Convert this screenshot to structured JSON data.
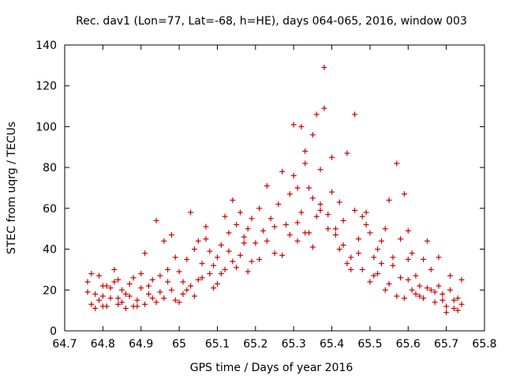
{
  "chart_data": {
    "type": "scatter",
    "title": "Rec. dav1 (Lon=77, Lat=-68, h=HE), days 064-065, 2016, window 003",
    "xlabel": "GPS time / Days of year 2016",
    "ylabel": "STEC from uqrg / TECUs",
    "xlim": [
      64.7,
      65.8
    ],
    "ylim": [
      0,
      140
    ],
    "x_ticks": [
      "64.7",
      "64.8",
      "64.9",
      "65",
      "65.1",
      "65.2",
      "65.3",
      "65.4",
      "65.5",
      "65.6",
      "65.7",
      "65.8"
    ],
    "y_ticks": [
      "0",
      "20",
      "40",
      "60",
      "80",
      "100",
      "120",
      "140"
    ],
    "grid": false,
    "marker": "+",
    "color": "#cc0000",
    "series": [
      {
        "points": [
          [
            64.76,
            24
          ],
          [
            64.77,
            13
          ],
          [
            64.78,
            18
          ],
          [
            64.79,
            15
          ],
          [
            64.8,
            22
          ],
          [
            64.81,
            12
          ],
          [
            64.82,
            16
          ],
          [
            64.83,
            24
          ],
          [
            64.84,
            13
          ],
          [
            64.85,
            20
          ],
          [
            64.86,
            11
          ],
          [
            64.87,
            17
          ],
          [
            64.88,
            26
          ],
          [
            64.89,
            15
          ],
          [
            64.9,
            21
          ],
          [
            64.91,
            13
          ],
          [
            64.92,
            18
          ],
          [
            64.93,
            25
          ],
          [
            64.94,
            14
          ],
          [
            64.95,
            19
          ],
          [
            64.96,
            16
          ],
          [
            64.97,
            24
          ],
          [
            64.98,
            20
          ],
          [
            64.99,
            15
          ],
          [
            64.76,
            19
          ],
          [
            64.78,
            11
          ],
          [
            64.8,
            17
          ],
          [
            64.82,
            21
          ],
          [
            64.84,
            25
          ],
          [
            64.86,
            18
          ],
          [
            64.88,
            12
          ],
          [
            64.9,
            28
          ],
          [
            64.92,
            22
          ],
          [
            64.94,
            54
          ],
          [
            64.96,
            44
          ],
          [
            64.98,
            47
          ],
          [
            64.77,
            28
          ],
          [
            64.79,
            27
          ],
          [
            64.81,
            22
          ],
          [
            64.83,
            30
          ],
          [
            64.85,
            14
          ],
          [
            64.87,
            23
          ],
          [
            64.89,
            12
          ],
          [
            64.91,
            38
          ],
          [
            64.93,
            16
          ],
          [
            64.95,
            27
          ],
          [
            64.97,
            30
          ],
          [
            64.99,
            36
          ],
          [
            64.8,
            12
          ],
          [
            64.84,
            16
          ],
          [
            65.0,
            29
          ],
          [
            65.01,
            18
          ],
          [
            65.02,
            35
          ],
          [
            65.03,
            22
          ],
          [
            65.04,
            40
          ],
          [
            65.05,
            25
          ],
          [
            65.06,
            33
          ],
          [
            65.07,
            45
          ],
          [
            65.08,
            28
          ],
          [
            65.09,
            21
          ],
          [
            65.1,
            36
          ],
          [
            65.11,
            42
          ],
          [
            65.12,
            30
          ],
          [
            65.13,
            48
          ],
          [
            65.14,
            34
          ],
          [
            65.15,
            52
          ],
          [
            65.16,
            37
          ],
          [
            65.17,
            46
          ],
          [
            65.18,
            29
          ],
          [
            65.19,
            55
          ],
          [
            65.0,
            14
          ],
          [
            65.02,
            20
          ],
          [
            65.04,
            17
          ],
          [
            65.06,
            26
          ],
          [
            65.08,
            39
          ],
          [
            65.1,
            23
          ],
          [
            65.12,
            56
          ],
          [
            65.14,
            64
          ],
          [
            65.16,
            58
          ],
          [
            65.18,
            50
          ],
          [
            65.03,
            58
          ],
          [
            65.05,
            44
          ],
          [
            65.07,
            51
          ],
          [
            65.09,
            32
          ],
          [
            65.11,
            28
          ],
          [
            65.13,
            39
          ],
          [
            65.15,
            31
          ],
          [
            65.17,
            43
          ],
          [
            65.19,
            34
          ],
          [
            65.01,
            24
          ],
          [
            65.2,
            43
          ],
          [
            65.21,
            60
          ],
          [
            65.22,
            49
          ],
          [
            65.23,
            71
          ],
          [
            65.24,
            55
          ],
          [
            65.25,
            38
          ],
          [
            65.26,
            62
          ],
          [
            65.27,
            78
          ],
          [
            65.28,
            52
          ],
          [
            65.29,
            67
          ],
          [
            65.3,
            76
          ],
          [
            65.31,
            44
          ],
          [
            65.32,
            58
          ],
          [
            65.33,
            82
          ],
          [
            65.34,
            48
          ],
          [
            65.35,
            96
          ],
          [
            65.36,
            56
          ],
          [
            65.37,
            62
          ],
          [
            65.38,
            129
          ],
          [
            65.39,
            57
          ],
          [
            65.3,
            101
          ],
          [
            65.32,
            100
          ],
          [
            65.34,
            70
          ],
          [
            65.36,
            106
          ],
          [
            65.38,
            109
          ],
          [
            65.4,
            85
          ],
          [
            65.31,
            70
          ],
          [
            65.33,
            88
          ],
          [
            65.35,
            65
          ],
          [
            65.37,
            79
          ],
          [
            65.21,
            35
          ],
          [
            65.23,
            44
          ],
          [
            65.25,
            51
          ],
          [
            65.27,
            37
          ],
          [
            65.29,
            47
          ],
          [
            65.31,
            53
          ],
          [
            65.33,
            48
          ],
          [
            65.35,
            41
          ],
          [
            65.37,
            59
          ],
          [
            65.39,
            50
          ],
          [
            65.4,
            68
          ],
          [
            65.41,
            47
          ],
          [
            65.42,
            40
          ],
          [
            65.43,
            54
          ],
          [
            65.44,
            87
          ],
          [
            65.45,
            36
          ],
          [
            65.46,
            59
          ],
          [
            65.47,
            45
          ],
          [
            65.48,
            30
          ],
          [
            65.49,
            52
          ],
          [
            65.5,
            48
          ],
          [
            65.51,
            36
          ],
          [
            65.52,
            28
          ],
          [
            65.53,
            44
          ],
          [
            65.54,
            20
          ],
          [
            65.55,
            64
          ],
          [
            65.56,
            36
          ],
          [
            65.57,
            82
          ],
          [
            65.58,
            26
          ],
          [
            65.59,
            67
          ],
          [
            65.42,
            63
          ],
          [
            65.44,
            33
          ],
          [
            65.46,
            106
          ],
          [
            65.48,
            56
          ],
          [
            65.5,
            24
          ],
          [
            65.52,
            40
          ],
          [
            65.54,
            50
          ],
          [
            65.56,
            32
          ],
          [
            65.58,
            45
          ],
          [
            65.6,
            35
          ],
          [
            65.41,
            50
          ],
          [
            65.43,
            42
          ],
          [
            65.45,
            30
          ],
          [
            65.47,
            38
          ],
          [
            65.49,
            58
          ],
          [
            65.51,
            27
          ],
          [
            65.53,
            33
          ],
          [
            65.55,
            23
          ],
          [
            65.57,
            17
          ],
          [
            65.59,
            16
          ],
          [
            65.6,
            25
          ],
          [
            65.61,
            20
          ],
          [
            65.62,
            18
          ],
          [
            65.63,
            22
          ],
          [
            65.64,
            16
          ],
          [
            65.65,
            44
          ],
          [
            65.66,
            20
          ],
          [
            65.67,
            14
          ],
          [
            65.68,
            36
          ],
          [
            65.69,
            18
          ],
          [
            65.7,
            12
          ],
          [
            65.71,
            20
          ],
          [
            65.72,
            11
          ],
          [
            65.73,
            16
          ],
          [
            65.74,
            25
          ],
          [
            65.6,
            49
          ],
          [
            65.62,
            27
          ],
          [
            65.64,
            35
          ],
          [
            65.66,
            30
          ],
          [
            65.68,
            22
          ],
          [
            65.7,
            9
          ],
          [
            65.72,
            15
          ],
          [
            65.74,
            13
          ],
          [
            65.61,
            38
          ],
          [
            65.63,
            17
          ],
          [
            65.65,
            21
          ],
          [
            65.67,
            19
          ],
          [
            65.69,
            15
          ],
          [
            65.71,
            27
          ],
          [
            65.73,
            10
          ]
        ]
      }
    ]
  }
}
